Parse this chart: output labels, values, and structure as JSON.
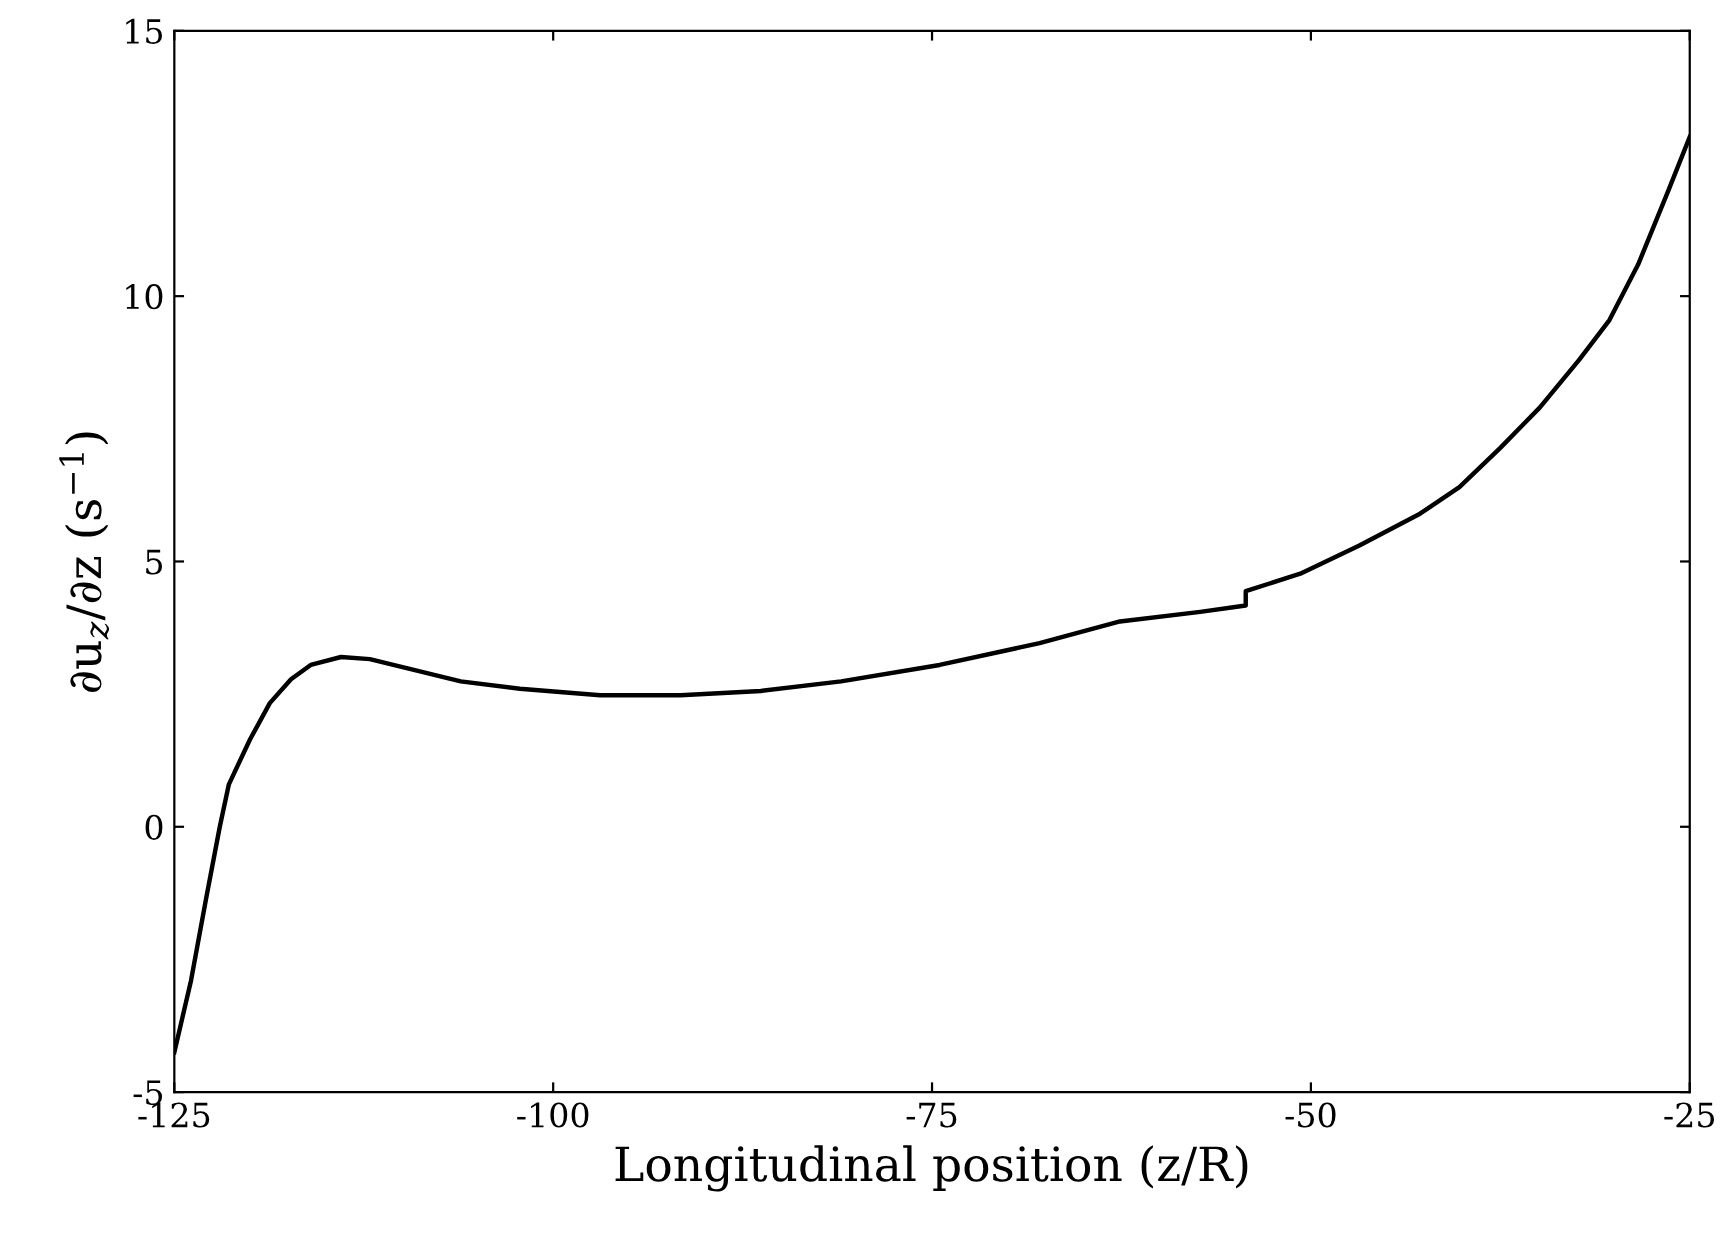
{
  "chart_data": {
    "type": "line",
    "xlabel": "Longitudinal position (z/R)",
    "ylabel": "∂u$_{z}$/∂z (s$^{−1}$)",
    "xlim": [
      -125,
      -25
    ],
    "xticks": [
      -125,
      -100,
      -75,
      -50,
      -25
    ],
    "ylim": [
      -5,
      15
    ],
    "yticks": [
      -5,
      0,
      5,
      10,
      15
    ],
    "marker": "none",
    "line_style": "solid",
    "series": [
      {
        "color": "#000000",
        "x": [
          -125,
          -123.9,
          -122.9,
          -122.0,
          -121.4,
          -120,
          -118.7,
          -117.3,
          -116,
          -114,
          -112.1,
          -109.4,
          -106.1,
          -102.2,
          -96.9,
          -91.6,
          -86.3,
          -81,
          -74.5,
          -67.9,
          -62.6,
          -57.3,
          -54.3,
          -54.3,
          -50.7,
          -46.8,
          -42.8,
          -40.2,
          -37.5,
          -34.9,
          -32.3,
          -30.3,
          -28.4,
          -26.4,
          -25
        ],
        "values": [
          -4.25,
          -2.9,
          -1.35,
          0.0,
          0.8,
          1.65,
          2.33,
          2.78,
          3.05,
          3.2,
          3.16,
          2.97,
          2.74,
          2.6,
          2.48,
          2.48,
          2.56,
          2.74,
          3.05,
          3.46,
          3.87,
          4.05,
          4.17,
          4.44,
          4.77,
          5.3,
          5.9,
          6.4,
          7.14,
          7.9,
          8.8,
          9.55,
          10.6,
          12,
          13
        ]
      }
    ]
  }
}
